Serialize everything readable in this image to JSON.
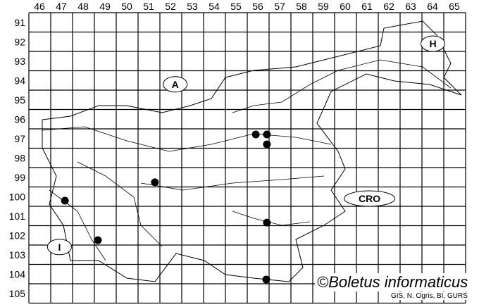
{
  "grid": {
    "columns": [
      "46",
      "47",
      "48",
      "49",
      "50",
      "51",
      "52",
      "53",
      "54",
      "55",
      "56",
      "57",
      "58",
      "59",
      "60",
      "61",
      "62",
      "63",
      "64",
      "65"
    ],
    "rows": [
      "91",
      "92",
      "93",
      "94",
      "95",
      "96",
      "97",
      "98",
      "99",
      "100",
      "101",
      "102",
      "103",
      "104",
      "105"
    ]
  },
  "country_labels": [
    {
      "text": "A",
      "col": 52.7,
      "row": 94.7
    },
    {
      "text": "H",
      "col": 64.5,
      "row": 92.6
    },
    {
      "text": "CRO",
      "col": 61.6,
      "row": 100.6
    },
    {
      "text": "I",
      "col": 47.4,
      "row": 103.1
    }
  ],
  "records": [
    {
      "col": 56.39,
      "row": 97.29
    },
    {
      "col": 56.9,
      "row": 97.29
    },
    {
      "col": 56.9,
      "row": 97.8
    },
    {
      "col": 51.77,
      "row": 99.76
    },
    {
      "col": 47.65,
      "row": 100.71
    },
    {
      "col": 56.9,
      "row": 101.84
    },
    {
      "col": 49.16,
      "row": 102.75
    },
    {
      "col": 56.87,
      "row": 104.78
    }
  ],
  "credit": "©Boletus informaticus",
  "source": "GIS, N. Ogris, BI, GURS",
  "colors": {
    "grid": "#000000",
    "dot": "#000000",
    "background": "#ffffff"
  }
}
